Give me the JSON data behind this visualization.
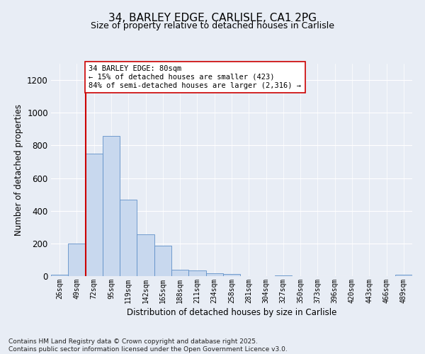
{
  "title_line1": "34, BARLEY EDGE, CARLISLE, CA1 2PG",
  "title_line2": "Size of property relative to detached houses in Carlisle",
  "xlabel": "Distribution of detached houses by size in Carlisle",
  "ylabel": "Number of detached properties",
  "bar_color": "#c8d8ee",
  "bar_edge_color": "#6090c8",
  "background_color": "#e8edf5",
  "grid_color": "#ffffff",
  "categories": [
    "26sqm",
    "49sqm",
    "72sqm",
    "95sqm",
    "119sqm",
    "142sqm",
    "165sqm",
    "188sqm",
    "211sqm",
    "234sqm",
    "258sqm",
    "281sqm",
    "304sqm",
    "327sqm",
    "350sqm",
    "373sqm",
    "396sqm",
    "420sqm",
    "443sqm",
    "466sqm",
    "489sqm"
  ],
  "values": [
    10,
    200,
    750,
    860,
    470,
    255,
    185,
    40,
    35,
    18,
    12,
    0,
    0,
    5,
    0,
    0,
    0,
    0,
    0,
    0,
    8
  ],
  "ylim": [
    0,
    1300
  ],
  "yticks": [
    0,
    200,
    400,
    600,
    800,
    1000,
    1200
  ],
  "vline_x_index": 2,
  "vline_color": "#cc0000",
  "annotation_text": "34 BARLEY EDGE: 80sqm\n← 15% of detached houses are smaller (423)\n84% of semi-detached houses are larger (2,316) →",
  "annotation_box_facecolor": "#ffffff",
  "annotation_box_edgecolor": "#cc0000",
  "footnote_line1": "Contains HM Land Registry data © Crown copyright and database right 2025.",
  "footnote_line2": "Contains public sector information licensed under the Open Government Licence v3.0."
}
